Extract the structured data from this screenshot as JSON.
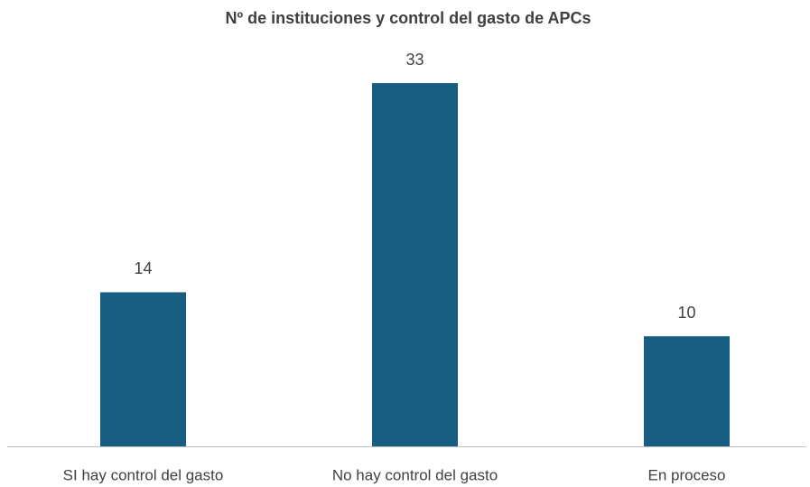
{
  "chart_data": {
    "type": "bar",
    "title": "Nº de instituciones y control del gasto de APCs",
    "categories": [
      "SI hay control del gasto",
      "No hay control del gasto",
      "En proceso"
    ],
    "values": [
      14,
      33,
      10
    ],
    "color": "#175e82"
  }
}
